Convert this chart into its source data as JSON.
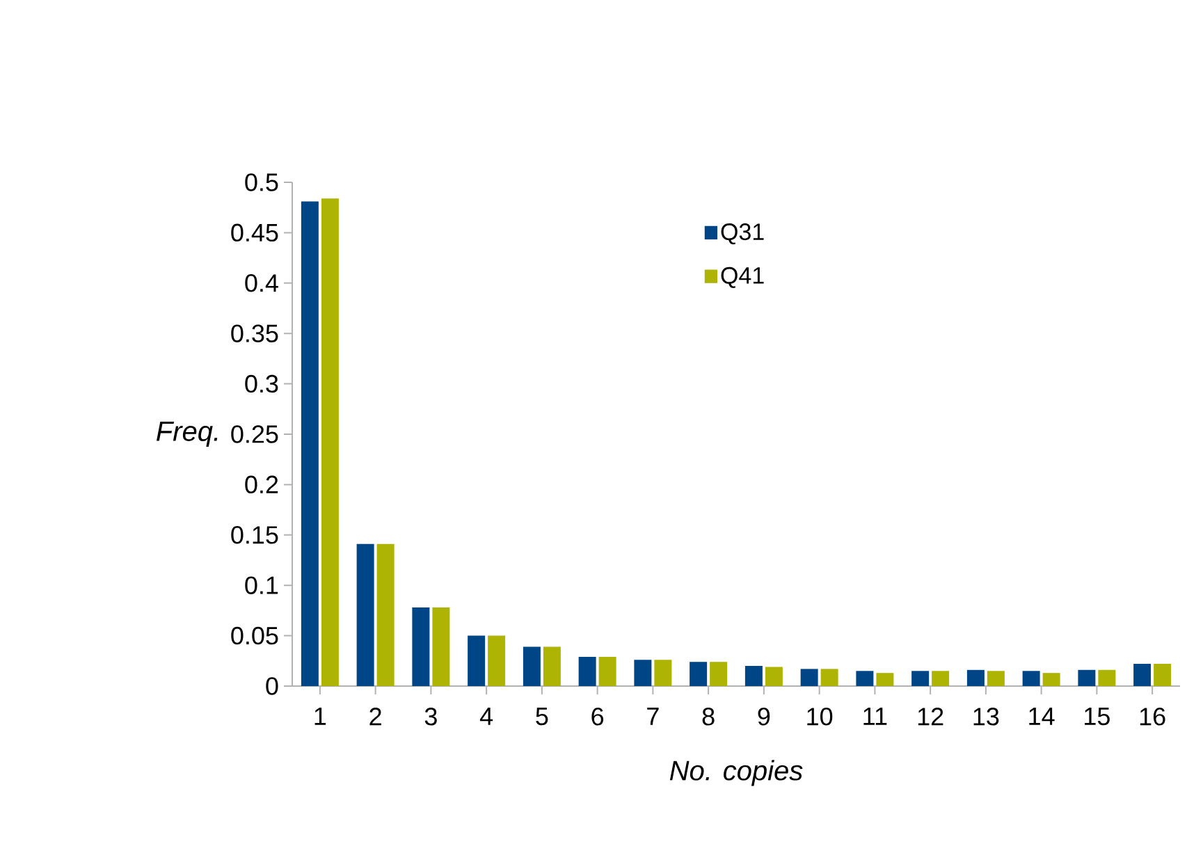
{
  "chart_data": {
    "type": "bar",
    "xlabel": "No. copies",
    "ylabel": "Freq.",
    "categories": [
      "1",
      "2",
      "3",
      "4",
      "5",
      "6",
      "7",
      "8",
      "9",
      "10",
      "11",
      "12",
      "13",
      "14",
      "15",
      "16"
    ],
    "series": [
      {
        "name": "Q31",
        "color": "#004586",
        "values": [
          0.481,
          0.141,
          0.078,
          0.05,
          0.039,
          0.029,
          0.026,
          0.024,
          0.02,
          0.017,
          0.015,
          0.015,
          0.016,
          0.015,
          0.016,
          0.022
        ]
      },
      {
        "name": "Q41",
        "color": "#aeb404",
        "values": [
          0.484,
          0.141,
          0.078,
          0.05,
          0.039,
          0.029,
          0.026,
          0.024,
          0.019,
          0.017,
          0.013,
          0.015,
          0.015,
          0.013,
          0.016,
          0.022
        ]
      }
    ],
    "ylim": [
      0,
      0.5
    ],
    "yticks": [
      0,
      0.05,
      0.1,
      0.15,
      0.2,
      0.25,
      0.3,
      0.35,
      0.4,
      0.45,
      0.5
    ],
    "grid": false,
    "legend": "top"
  }
}
